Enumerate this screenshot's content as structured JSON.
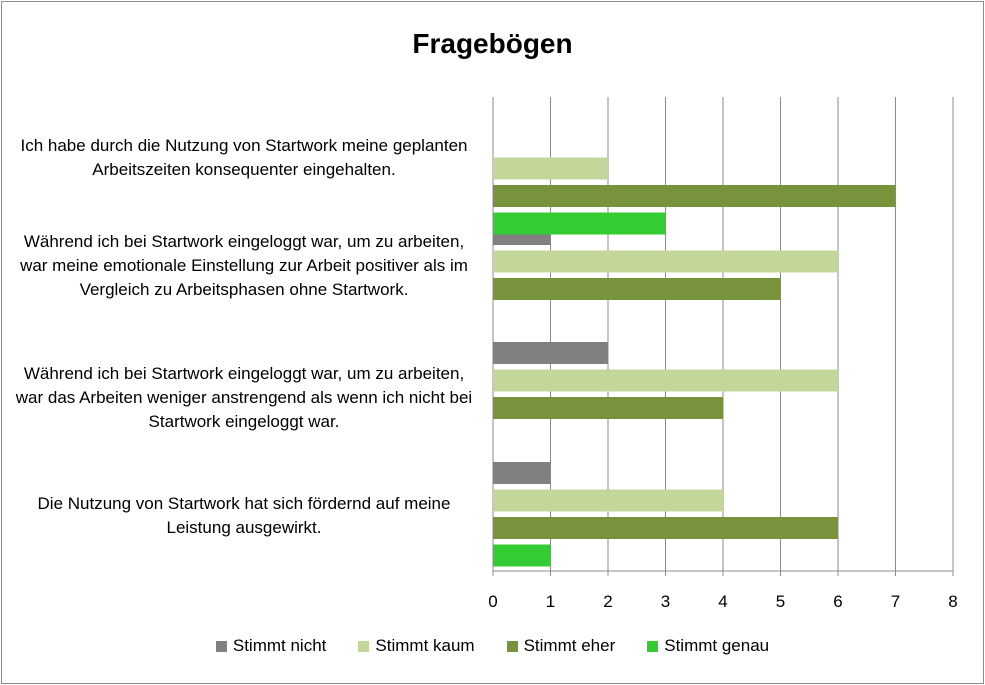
{
  "chart_data": {
    "type": "bar",
    "orientation": "horizontal",
    "title": "Fragebögen",
    "xlabel": "",
    "ylabel": "",
    "xlim": [
      0,
      8
    ],
    "ticks": [
      "0",
      "1",
      "2",
      "3",
      "4",
      "5",
      "6",
      "7",
      "8"
    ],
    "grid": true,
    "legend_position": "bottom",
    "categories": [
      "Ich habe durch die Nutzung von Startwork meine geplanten Arbeitszeiten konsequenter eingehalten.",
      "Während ich bei Startwork eingeloggt war, um zu arbeiten, war meine emotionale Einstellung zur Arbeit positiver als im Vergleich zu Arbeitsphasen ohne Startwork.",
      "Während ich bei Startwork eingeloggt war, um zu arbeiten, war das Arbeiten weniger anstrengend als wenn ich nicht bei Startwork eingeloggt war.",
      "Die Nutzung von Startwork hat sich fördernd auf meine Leistung ausgewirkt."
    ],
    "series": [
      {
        "name": "Stimmt nicht",
        "color": "#808080",
        "values": [
          0,
          1,
          2,
          1
        ]
      },
      {
        "name": "Stimmt kaum",
        "color": "#c4d79b",
        "values": [
          2,
          6,
          6,
          4
        ]
      },
      {
        "name": "Stimmt eher",
        "color": "#77933c",
        "values": [
          7,
          5,
          4,
          6
        ]
      },
      {
        "name": "Stimmt genau",
        "color": "#33cc33",
        "values": [
          3,
          0,
          0,
          1
        ]
      }
    ]
  }
}
